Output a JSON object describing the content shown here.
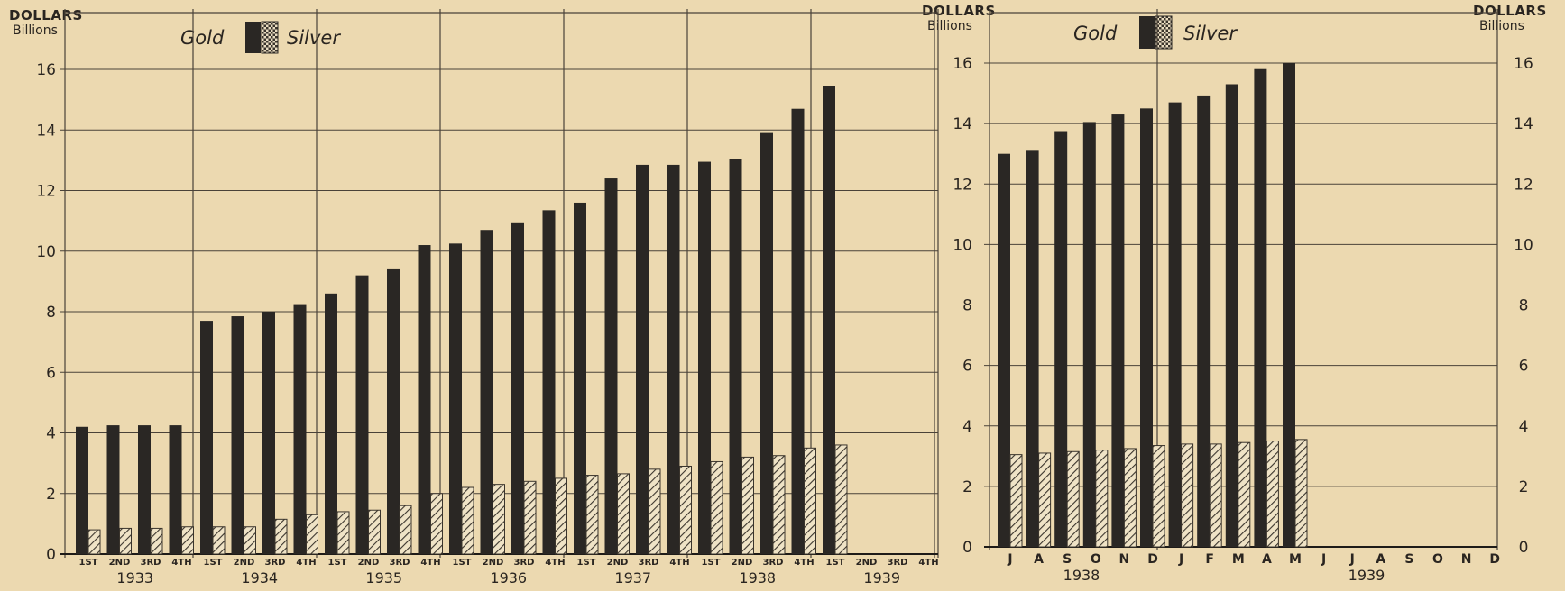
{
  "left_panel": {
    "axis_title": "DOLLARS",
    "axis_unit": "Billions",
    "legend": {
      "gold": "Gold",
      "silver": "Silver"
    }
  },
  "right_panel": {
    "axis_title_left": "DOLLARS",
    "axis_unit_left": "Billions",
    "axis_title_right": "DOLLARS",
    "axis_unit_right": "Billions",
    "legend": {
      "gold": "Gold",
      "silver": "Silver"
    }
  },
  "colors": {
    "background": "#ecd9b0",
    "gold_bar": "#2a2724",
    "silver_hatch": "#3a342c",
    "grid": "#4a4238"
  },
  "chart_data": [
    {
      "type": "bar",
      "title": "",
      "ylabel": "DOLLARS Billions",
      "ylim": [
        0,
        16
      ],
      "yticks": [
        0,
        2,
        4,
        6,
        8,
        10,
        12,
        14,
        16
      ],
      "grid": true,
      "legend_position": "top-left",
      "categories": [
        "1ST",
        "2ND",
        "3RD",
        "4TH",
        "1ST",
        "2ND",
        "3RD",
        "4TH",
        "1ST",
        "2ND",
        "3RD",
        "4TH",
        "1ST",
        "2ND",
        "3RD",
        "4TH",
        "1ST",
        "2ND",
        "3RD",
        "4TH",
        "1ST",
        "2ND",
        "3RD",
        "4TH",
        "1ST",
        "2ND",
        "3RD",
        "4TH"
      ],
      "years": [
        "1933",
        "1934",
        "1935",
        "1936",
        "1937",
        "1938",
        "1939"
      ],
      "series": [
        {
          "name": "Gold",
          "values": [
            4.2,
            4.25,
            4.25,
            4.25,
            7.7,
            7.85,
            8.0,
            8.25,
            8.6,
            9.2,
            9.4,
            10.2,
            10.25,
            10.7,
            10.95,
            11.35,
            11.6,
            12.4,
            12.85,
            12.85,
            12.95,
            13.05,
            13.9,
            14.7,
            15.45,
            null,
            null,
            null
          ]
        },
        {
          "name": "Silver",
          "values": [
            0.8,
            0.85,
            0.85,
            0.9,
            0.9,
            0.9,
            1.15,
            1.3,
            1.4,
            1.45,
            1.6,
            2.0,
            2.2,
            2.3,
            2.4,
            2.5,
            2.6,
            2.65,
            2.8,
            2.9,
            3.05,
            3.2,
            3.25,
            3.5,
            3.6,
            null,
            null,
            null
          ]
        }
      ]
    },
    {
      "type": "bar",
      "title": "",
      "ylabel": "DOLLARS Billions",
      "ylim": [
        0,
        16
      ],
      "yticks": [
        0,
        2,
        4,
        6,
        8,
        10,
        12,
        14,
        16
      ],
      "grid": true,
      "legend_position": "top-left",
      "categories": [
        "J",
        "A",
        "S",
        "O",
        "N",
        "D",
        "J",
        "F",
        "M",
        "A",
        "M",
        "J",
        "J",
        "A",
        "S",
        "O",
        "N",
        "D"
      ],
      "years": [
        "1938",
        "1939"
      ],
      "series": [
        {
          "name": "Gold",
          "values": [
            13.0,
            13.1,
            13.75,
            14.05,
            14.3,
            14.5,
            14.7,
            14.9,
            15.3,
            15.8,
            16.0,
            null,
            null,
            null,
            null,
            null,
            null,
            null
          ]
        },
        {
          "name": "Silver",
          "values": [
            3.05,
            3.1,
            3.15,
            3.2,
            3.25,
            3.35,
            3.4,
            3.4,
            3.45,
            3.5,
            3.55,
            null,
            null,
            null,
            null,
            null,
            null,
            null
          ]
        }
      ]
    }
  ]
}
